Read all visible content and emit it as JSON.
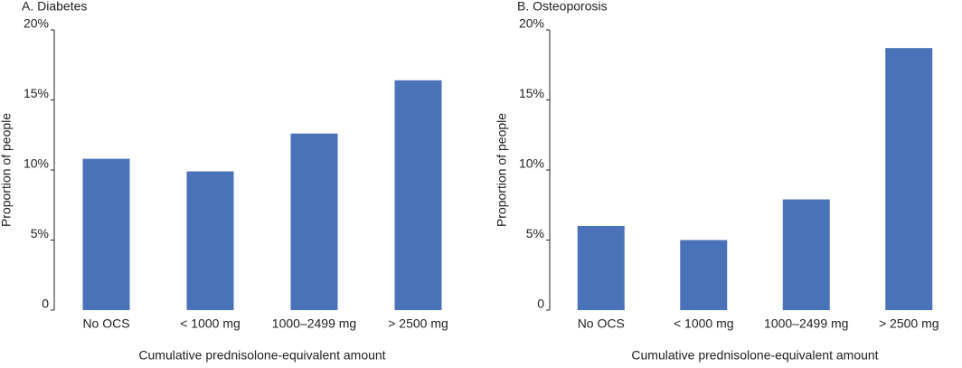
{
  "chart_data": [
    {
      "type": "bar",
      "title": "A. Diabetes",
      "y_label": "Proportion of people",
      "x_label": "Cumulative prednisolone-equivalent amount",
      "categories": [
        "No OCS",
        "< 1000 mg",
        "1000–2499 mg",
        "> 2500 mg"
      ],
      "values": [
        10.8,
        9.9,
        12.6,
        16.4
      ],
      "color": "#4a72b8",
      "ylim": [
        0,
        20
      ],
      "yticks": [
        0,
        {
          "value": 5,
          "label": "5%"
        },
        {
          "value": 10,
          "label": "10%"
        },
        {
          "value": 15,
          "label": "15%"
        },
        {
          "value": 20,
          "label": "20%"
        }
      ],
      "grid": false
    },
    {
      "type": "bar",
      "title": "B. Osteoporosis",
      "y_label": "Proportion of people",
      "x_label": "Cumulative prednisolone-equivalent amount",
      "categories": [
        "No OCS",
        "< 1000 mg",
        "1000–2499 mg",
        "> 2500 mg"
      ],
      "values": [
        6.0,
        5.0,
        7.9,
        18.7
      ],
      "color": "#4a72b8",
      "ylim": [
        0,
        20
      ],
      "yticks": [
        0,
        {
          "value": 5,
          "label": "5%"
        },
        {
          "value": 10,
          "label": "10%"
        },
        {
          "value": 15,
          "label": "15%"
        },
        {
          "value": 20,
          "label": "20%"
        }
      ],
      "grid": false
    }
  ]
}
